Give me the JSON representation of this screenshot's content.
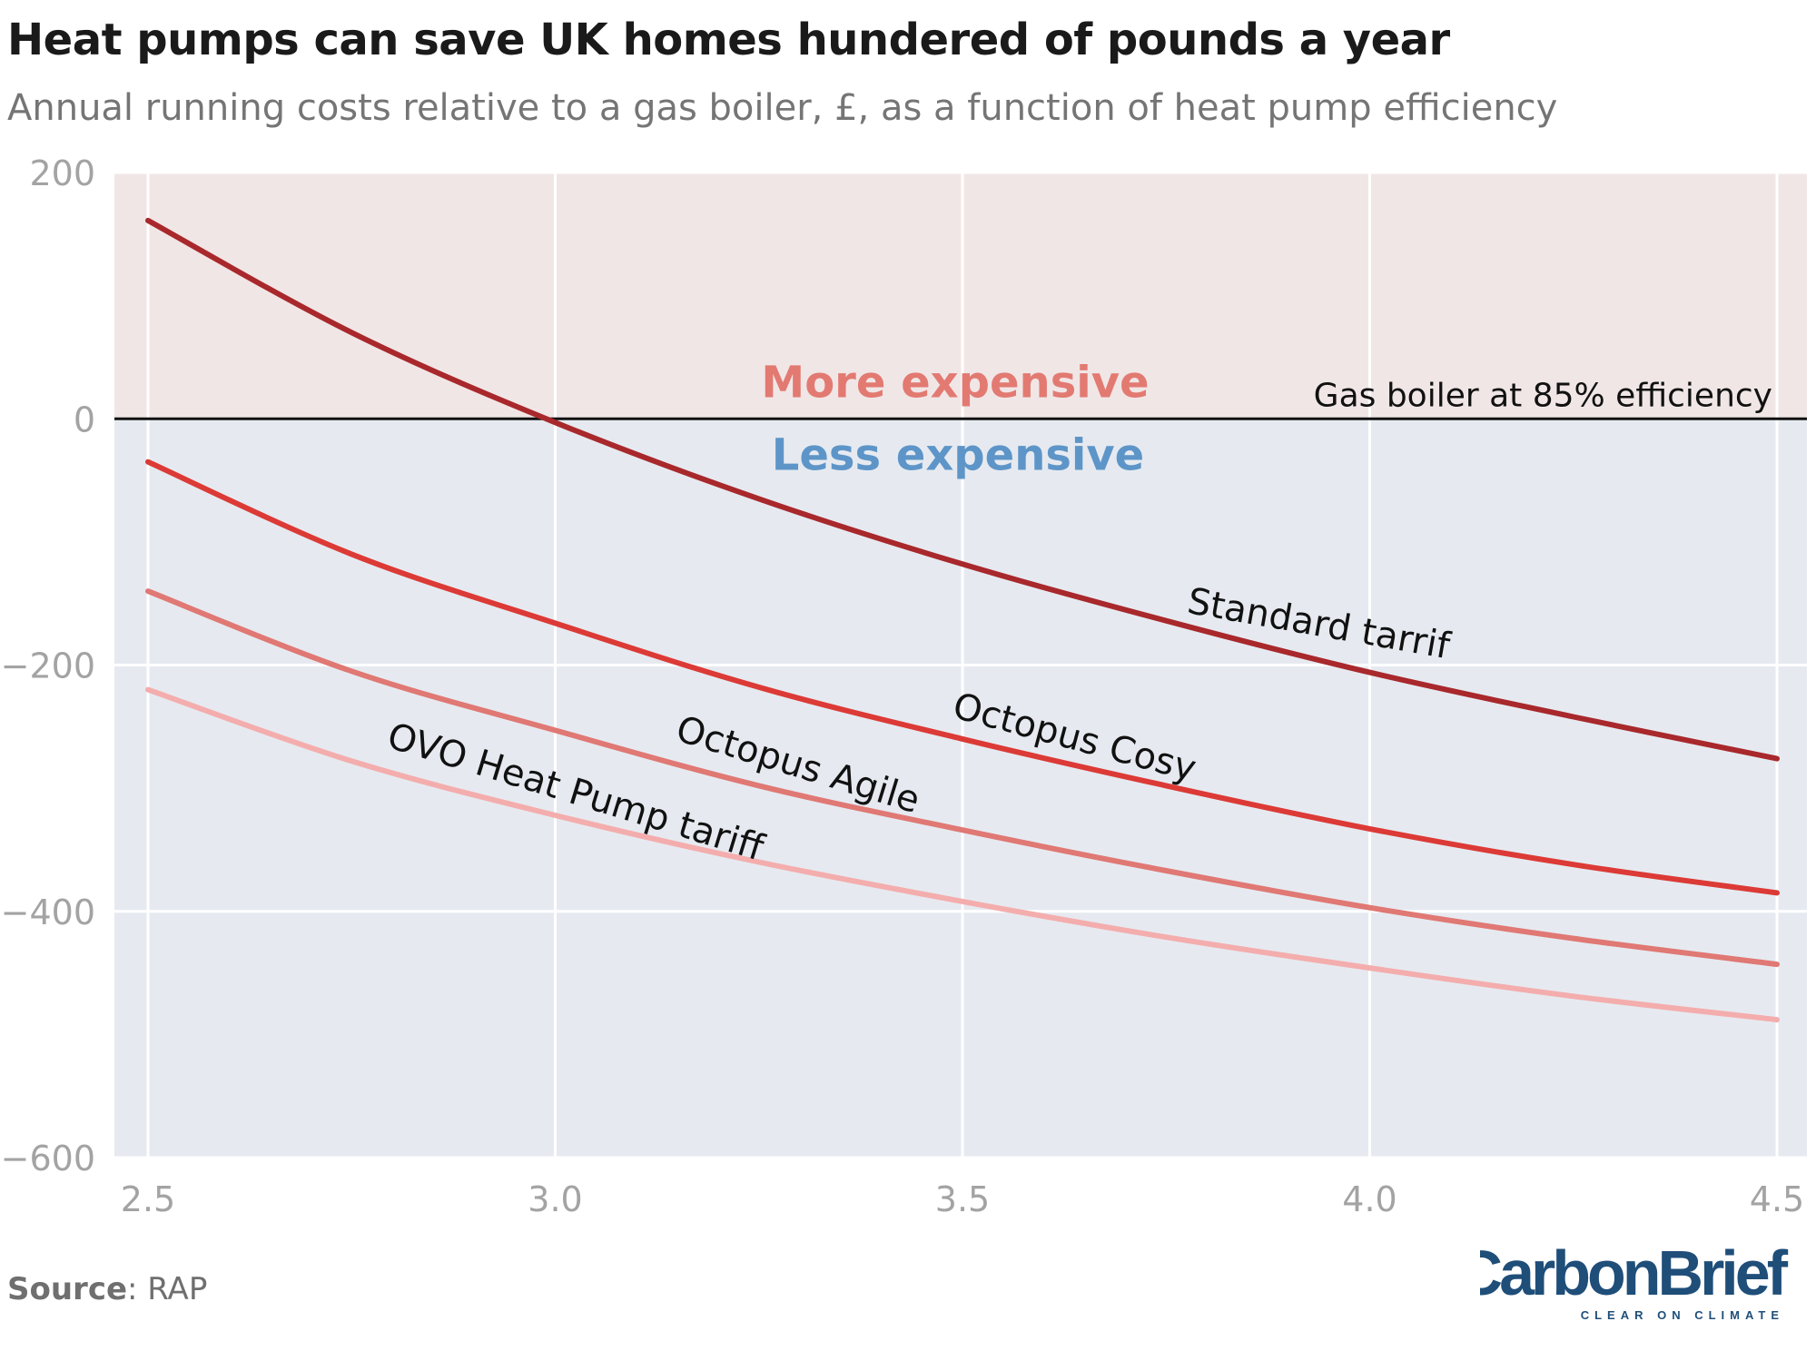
{
  "header": {
    "title": "Heat pumps can save UK homes hundered of pounds a year",
    "subtitle": "Annual running costs relative to a gas boiler, £, as a function of heat pump efficiency"
  },
  "footer": {
    "source_label": "Source",
    "source_value": ": RAP",
    "brand_name": "CarbonBrief",
    "brand_tagline": "CLEAR ON CLIMATE"
  },
  "colors": {
    "above_zero_bg": "#f1e6e6",
    "below_zero_bg": "#e6eaf0",
    "grid": "#ffffff",
    "zero_line": "#111111",
    "axis_text": "#a3a3a3",
    "more_expensive_text": "#e27a72",
    "less_expensive_text": "#5e95c8",
    "brand_blue": "#1f4e79"
  },
  "chart_data": {
    "type": "line",
    "title": "Heat pumps can save UK homes hundered of pounds a year",
    "subtitle": "Annual running costs relative to a gas boiler, £, as a function of heat pump efficiency",
    "xlabel": "",
    "ylabel": "",
    "xlim": [
      2.5,
      4.5
    ],
    "ylim": [
      -600,
      200
    ],
    "x_ticks": [
      "2.5",
      "3.0",
      "3.5",
      "4.0",
      "4.5"
    ],
    "y_ticks": [
      "200",
      "0",
      "−200",
      "−400",
      "−600"
    ],
    "grid": true,
    "legend": "inline labels",
    "regions": [
      {
        "label": "More expensive",
        "range": [
          0,
          200
        ]
      },
      {
        "label": "Less expensive",
        "range": [
          -600,
          0
        ]
      }
    ],
    "reference_line": {
      "y": 0,
      "label": "Gas boiler at 85% efficiency"
    },
    "x": [
      2.5,
      2.75,
      3.0,
      3.25,
      3.5,
      3.75,
      4.0,
      4.25,
      4.5
    ],
    "series": [
      {
        "name": "Standard tarrif",
        "color": "#a8282c",
        "values": [
          161,
          70,
          -3,
          -65,
          -118,
          -164,
          -206,
          -242,
          -276
        ]
      },
      {
        "name": "Octopus Cosy",
        "color": "#dc3a36",
        "values": [
          -35,
          -110,
          -166,
          -218,
          -260,
          -298,
          -333,
          -362,
          -385
        ]
      },
      {
        "name": "Octopus Agile",
        "color": "#e07874",
        "values": [
          -140,
          -205,
          -253,
          -298,
          -334,
          -367,
          -397,
          -422,
          -443
        ]
      },
      {
        "name": "OVO Heat Pump tariff",
        "color": "#f4adad",
        "values": [
          -220,
          -278,
          -322,
          -360,
          -392,
          -421,
          -446,
          -469,
          -488
        ]
      }
    ]
  }
}
